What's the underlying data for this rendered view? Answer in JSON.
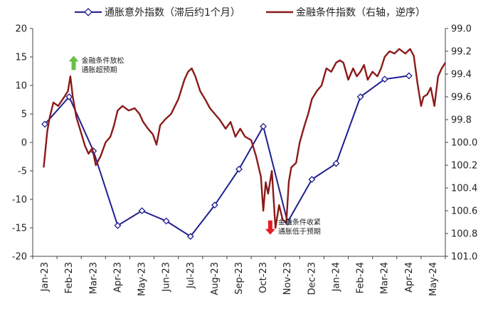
{
  "chart_data": {
    "type": "line",
    "legend_position": "top",
    "grid": false,
    "x_tick_labels": [
      "Jan-23",
      "Feb-23",
      "Mar-23",
      "Apr-23",
      "May-23",
      "Jun-23",
      "Jul-23",
      "Aug-23",
      "Sep-23",
      "Oct-23",
      "Nov-23",
      "Dec-23",
      "Jan-24",
      "Feb-24",
      "Mar-24",
      "Apr-24",
      "May-24"
    ],
    "y_left": {
      "min": -20,
      "max": 20,
      "ticks": [
        "20",
        "15",
        "10",
        "5",
        "0",
        "-5",
        "-10",
        "-15",
        "-20"
      ]
    },
    "y_right": {
      "min": 99.0,
      "max": 101.0,
      "inverted": true,
      "ticks": [
        "99.0",
        "99.2",
        "99.4",
        "99.6",
        "99.8",
        "100.0",
        "100.2",
        "100.4",
        "100.6",
        "100.8",
        "101.0"
      ]
    },
    "series": [
      {
        "name": "通胀意外指数（滞后约1个月）",
        "axis": "left",
        "color": "#1f1f8f",
        "marker": "diamond",
        "points": [
          {
            "x": 0.0,
            "y": 3.2
          },
          {
            "x": 1.0,
            "y": 8.0
          },
          {
            "x": 2.0,
            "y": -1.5
          },
          {
            "x": 3.0,
            "y": -14.6
          },
          {
            "x": 4.0,
            "y": -12.0
          },
          {
            "x": 5.0,
            "y": -13.8
          },
          {
            "x": 6.0,
            "y": -16.5
          },
          {
            "x": 7.0,
            "y": -11.0
          },
          {
            "x": 8.0,
            "y": -4.7
          },
          {
            "x": 9.0,
            "y": 2.8
          },
          {
            "x": 10.0,
            "y": -14.0
          },
          {
            "x": 11.0,
            "y": -6.5
          },
          {
            "x": 12.0,
            "y": -3.7
          },
          {
            "x": 13.0,
            "y": 8.0
          },
          {
            "x": 14.0,
            "y": 11.1
          },
          {
            "x": 15.0,
            "y": 11.7
          }
        ]
      },
      {
        "name": "金融条件指数（右轴，逆序）",
        "axis": "right",
        "color": "#8b1a1a",
        "points": [
          {
            "x": -0.05,
            "y": 100.22
          },
          {
            "x": 0.1,
            "y": 99.9
          },
          {
            "x": 0.2,
            "y": 99.78
          },
          {
            "x": 0.35,
            "y": 99.65
          },
          {
            "x": 0.55,
            "y": 99.68
          },
          {
            "x": 0.8,
            "y": 99.6
          },
          {
            "x": 0.95,
            "y": 99.55
          },
          {
            "x": 1.05,
            "y": 99.42
          },
          {
            "x": 1.15,
            "y": 99.6
          },
          {
            "x": 1.3,
            "y": 99.78
          },
          {
            "x": 1.5,
            "y": 99.92
          },
          {
            "x": 1.65,
            "y": 100.03
          },
          {
            "x": 1.8,
            "y": 100.1
          },
          {
            "x": 1.95,
            "y": 100.05
          },
          {
            "x": 2.1,
            "y": 100.2
          },
          {
            "x": 2.3,
            "y": 100.12
          },
          {
            "x": 2.5,
            "y": 100.0
          },
          {
            "x": 2.7,
            "y": 99.95
          },
          {
            "x": 2.85,
            "y": 99.85
          },
          {
            "x": 3.0,
            "y": 99.72
          },
          {
            "x": 3.2,
            "y": 99.68
          },
          {
            "x": 3.45,
            "y": 99.72
          },
          {
            "x": 3.7,
            "y": 99.7
          },
          {
            "x": 3.9,
            "y": 99.75
          },
          {
            "x": 4.05,
            "y": 99.82
          },
          {
            "x": 4.25,
            "y": 99.88
          },
          {
            "x": 4.45,
            "y": 99.93
          },
          {
            "x": 4.6,
            "y": 100.02
          },
          {
            "x": 4.75,
            "y": 99.85
          },
          {
            "x": 4.95,
            "y": 99.8
          },
          {
            "x": 5.2,
            "y": 99.75
          },
          {
            "x": 5.5,
            "y": 99.62
          },
          {
            "x": 5.75,
            "y": 99.45
          },
          {
            "x": 5.9,
            "y": 99.38
          },
          {
            "x": 6.05,
            "y": 99.35
          },
          {
            "x": 6.2,
            "y": 99.42
          },
          {
            "x": 6.4,
            "y": 99.55
          },
          {
            "x": 6.6,
            "y": 99.62
          },
          {
            "x": 6.8,
            "y": 99.7
          },
          {
            "x": 7.0,
            "y": 99.75
          },
          {
            "x": 7.2,
            "y": 99.8
          },
          {
            "x": 7.45,
            "y": 99.88
          },
          {
            "x": 7.65,
            "y": 99.82
          },
          {
            "x": 7.85,
            "y": 99.95
          },
          {
            "x": 8.05,
            "y": 99.88
          },
          {
            "x": 8.25,
            "y": 99.95
          },
          {
            "x": 8.5,
            "y": 99.98
          },
          {
            "x": 8.7,
            "y": 100.12
          },
          {
            "x": 8.9,
            "y": 100.3
          },
          {
            "x": 9.0,
            "y": 100.6
          },
          {
            "x": 9.1,
            "y": 100.35
          },
          {
            "x": 9.2,
            "y": 100.45
          },
          {
            "x": 9.35,
            "y": 100.25
          },
          {
            "x": 9.5,
            "y": 100.75
          },
          {
            "x": 9.65,
            "y": 100.55
          },
          {
            "x": 9.8,
            "y": 100.68
          },
          {
            "x": 9.95,
            "y": 100.7
          },
          {
            "x": 10.05,
            "y": 100.35
          },
          {
            "x": 10.15,
            "y": 100.22
          },
          {
            "x": 10.35,
            "y": 100.18
          },
          {
            "x": 10.5,
            "y": 100.0
          },
          {
            "x": 10.7,
            "y": 99.85
          },
          {
            "x": 10.85,
            "y": 99.75
          },
          {
            "x": 11.0,
            "y": 99.62
          },
          {
            "x": 11.2,
            "y": 99.55
          },
          {
            "x": 11.4,
            "y": 99.5
          },
          {
            "x": 11.6,
            "y": 99.35
          },
          {
            "x": 11.8,
            "y": 99.38
          },
          {
            "x": 12.0,
            "y": 99.3
          },
          {
            "x": 12.15,
            "y": 99.28
          },
          {
            "x": 12.3,
            "y": 99.3
          },
          {
            "x": 12.5,
            "y": 99.45
          },
          {
            "x": 12.7,
            "y": 99.35
          },
          {
            "x": 12.85,
            "y": 99.42
          },
          {
            "x": 13.0,
            "y": 99.38
          },
          {
            "x": 13.15,
            "y": 99.32
          },
          {
            "x": 13.3,
            "y": 99.45
          },
          {
            "x": 13.5,
            "y": 99.38
          },
          {
            "x": 13.7,
            "y": 99.42
          },
          {
            "x": 13.85,
            "y": 99.35
          },
          {
            "x": 14.0,
            "y": 99.25
          },
          {
            "x": 14.2,
            "y": 99.2
          },
          {
            "x": 14.4,
            "y": 99.22
          },
          {
            "x": 14.6,
            "y": 99.18
          },
          {
            "x": 14.85,
            "y": 99.22
          },
          {
            "x": 15.05,
            "y": 99.18
          },
          {
            "x": 15.2,
            "y": 99.24
          },
          {
            "x": 15.35,
            "y": 99.48
          },
          {
            "x": 15.5,
            "y": 99.68
          },
          {
            "x": 15.6,
            "y": 99.6
          },
          {
            "x": 15.75,
            "y": 99.58
          },
          {
            "x": 15.9,
            "y": 99.52
          },
          {
            "x": 16.05,
            "y": 99.68
          },
          {
            "x": 16.2,
            "y": 99.42
          },
          {
            "x": 16.35,
            "y": 99.35
          },
          {
            "x": 16.5,
            "y": 99.3
          }
        ]
      }
    ],
    "annotations": [
      {
        "lines": [
          "金融条件放松",
          "通胀超预期"
        ],
        "arrow": "up",
        "color": "#6abf45",
        "x": 1.45,
        "y": 14.2
      },
      {
        "lines": [
          "金融条件收紧",
          "通胀低于预期"
        ],
        "arrow": "down",
        "color": "#e31e24",
        "x": 9.55,
        "y": -14.2
      }
    ]
  }
}
